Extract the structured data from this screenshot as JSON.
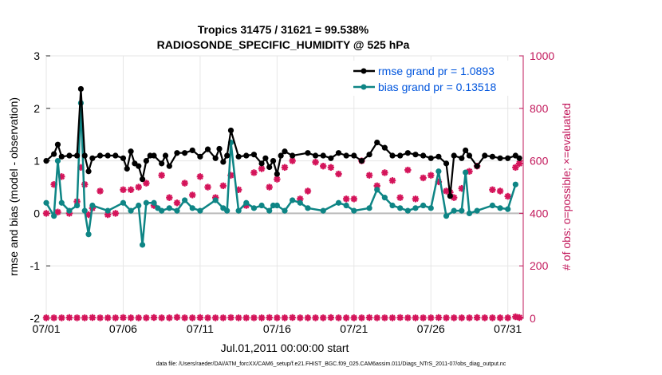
{
  "chart_data": {
    "type": "line",
    "title_line1": "Tropics 31475 / 31621 = 99.538%",
    "title_line2": "RADIOSONDE_SPECIFIC_HUMIDITY @ 525 hPa",
    "xlabel": "Jul.01,2011 00:00:00 start",
    "ylabel_left": "rmse and bias (model - observation)",
    "ylabel_right": "# of obs: o=possible; ×=evaluated",
    "footnote": "data file: /Users/raeder/DAI/ATM_forcXX/CAM6_setup/f.e21.FHIST_BGC.f09_025.CAM6assim.011/Diags_NTrS_2011-07/obs_diag_output.nc",
    "x_ticks": [
      {
        "day": 1,
        "label": "07/01"
      },
      {
        "day": 6,
        "label": "07/06"
      },
      {
        "day": 11,
        "label": "07/11"
      },
      {
        "day": 16,
        "label": "07/16"
      },
      {
        "day": 21,
        "label": "07/21"
      },
      {
        "day": 26,
        "label": "07/26"
      },
      {
        "day": 31,
        "label": "07/31"
      }
    ],
    "xlim": [
      1,
      32
    ],
    "ylim_left": [
      -2,
      3
    ],
    "ylim_right": [
      0,
      1000
    ],
    "y_ticks_left": [
      {
        "value": 3,
        "label": "3"
      },
      {
        "value": 2,
        "label": "2"
      },
      {
        "value": 1,
        "label": "1"
      },
      {
        "value": 0,
        "label": "0"
      },
      {
        "value": -1,
        "label": "-1"
      },
      {
        "value": -2,
        "label": "-2"
      }
    ],
    "y_ticks_right": [
      {
        "value": 1000,
        "label": "1000"
      },
      {
        "value": 800,
        "label": "800"
      },
      {
        "value": 600,
        "label": "600"
      },
      {
        "value": 400,
        "label": "400"
      },
      {
        "value": 200,
        "label": "200"
      },
      {
        "value": 0,
        "label": "0"
      }
    ],
    "legend": [
      {
        "name": "rmse grand pr = 1.0893",
        "color": "#000000"
      },
      {
        "name": "bias grand pr = 0.13518",
        "color": "#0e8585"
      }
    ],
    "legend_text_color": "#0055dd",
    "colors": {
      "rmse": "#000000",
      "bias": "#0e8585",
      "counts": "#d4145a",
      "right_axis": "#c2185b",
      "zero_line": "#bbbbbb"
    },
    "series": [
      {
        "name": "rmse",
        "axis": "left",
        "points": [
          [
            1.0,
            1.0
          ],
          [
            1.5,
            1.13
          ],
          [
            1.75,
            1.31
          ],
          [
            2.0,
            1.08
          ],
          [
            2.5,
            1.1
          ],
          [
            3.0,
            1.1
          ],
          [
            3.25,
            2.37
          ],
          [
            3.5,
            1.1
          ],
          [
            3.75,
            0.8
          ],
          [
            4.0,
            1.05
          ],
          [
            4.5,
            1.1
          ],
          [
            5.0,
            1.1
          ],
          [
            5.5,
            1.1
          ],
          [
            6.0,
            1.05
          ],
          [
            6.25,
            0.85
          ],
          [
            6.5,
            1.18
          ],
          [
            6.75,
            0.95
          ],
          [
            7.0,
            0.9
          ],
          [
            7.25,
            0.65
          ],
          [
            7.5,
            1.0
          ],
          [
            7.75,
            1.1
          ],
          [
            8.0,
            1.1
          ],
          [
            8.5,
            0.95
          ],
          [
            8.75,
            1.1
          ],
          [
            9.0,
            0.9
          ],
          [
            9.5,
            1.15
          ],
          [
            10.0,
            1.15
          ],
          [
            10.5,
            1.2
          ],
          [
            11.0,
            1.08
          ],
          [
            11.5,
            1.22
          ],
          [
            12.0,
            1.05
          ],
          [
            12.25,
            1.23
          ],
          [
            12.5,
            0.98
          ],
          [
            12.75,
            1.1
          ],
          [
            13.0,
            1.58
          ],
          [
            13.5,
            1.08
          ],
          [
            14.0,
            1.1
          ],
          [
            14.5,
            1.12
          ],
          [
            15.0,
            0.95
          ],
          [
            15.25,
            1.05
          ],
          [
            15.5,
            0.88
          ],
          [
            15.75,
            1.0
          ],
          [
            16.0,
            0.75
          ],
          [
            16.25,
            1.1
          ],
          [
            16.5,
            1.18
          ],
          [
            17.0,
            1.1
          ],
          [
            18.0,
            1.15
          ],
          [
            18.5,
            1.1
          ],
          [
            19.0,
            1.1
          ],
          [
            19.5,
            1.05
          ],
          [
            20.0,
            1.15
          ],
          [
            20.5,
            1.1
          ],
          [
            21.0,
            1.1
          ],
          [
            21.5,
            1.0
          ],
          [
            22.0,
            1.12
          ],
          [
            22.5,
            1.35
          ],
          [
            23.0,
            1.25
          ],
          [
            23.5,
            1.1
          ],
          [
            24.0,
            1.1
          ],
          [
            24.5,
            1.15
          ],
          [
            25.0,
            1.12
          ],
          [
            25.5,
            1.1
          ],
          [
            26.0,
            1.05
          ],
          [
            26.5,
            1.08
          ],
          [
            27.0,
            0.95
          ],
          [
            27.25,
            0.33
          ],
          [
            27.5,
            1.1
          ],
          [
            28.0,
            1.05
          ],
          [
            28.25,
            1.2
          ],
          [
            28.5,
            1.1
          ],
          [
            29.0,
            0.9
          ],
          [
            29.5,
            1.1
          ],
          [
            30.0,
            1.08
          ],
          [
            30.5,
            1.05
          ],
          [
            31.0,
            1.05
          ],
          [
            31.5,
            1.1
          ],
          [
            31.75,
            1.05
          ]
        ]
      },
      {
        "name": "bias",
        "axis": "left",
        "points": [
          [
            1.0,
            0.2
          ],
          [
            1.5,
            -0.05
          ],
          [
            1.75,
            1.0
          ],
          [
            2.0,
            0.2
          ],
          [
            2.5,
            0.05
          ],
          [
            3.0,
            0.15
          ],
          [
            3.25,
            2.1
          ],
          [
            3.5,
            0.05
          ],
          [
            3.75,
            -0.4
          ],
          [
            4.0,
            0.15
          ],
          [
            5.0,
            0.05
          ],
          [
            6.0,
            0.2
          ],
          [
            6.5,
            0.05
          ],
          [
            7.0,
            0.15
          ],
          [
            7.25,
            -0.6
          ],
          [
            7.5,
            0.2
          ],
          [
            8.0,
            0.2
          ],
          [
            8.25,
            0.1
          ],
          [
            8.5,
            0.05
          ],
          [
            9.0,
            0.1
          ],
          [
            9.5,
            0.05
          ],
          [
            10.0,
            0.25
          ],
          [
            10.5,
            0.1
          ],
          [
            11.0,
            0.05
          ],
          [
            12.0,
            0.25
          ],
          [
            12.5,
            0.1
          ],
          [
            12.75,
            0.05
          ],
          [
            13.0,
            1.35
          ],
          [
            13.5,
            0.05
          ],
          [
            14.0,
            0.2
          ],
          [
            14.5,
            0.1
          ],
          [
            15.0,
            0.15
          ],
          [
            15.5,
            0.05
          ],
          [
            15.75,
            0.15
          ],
          [
            16.0,
            0.15
          ],
          [
            16.5,
            0.05
          ],
          [
            17.0,
            0.25
          ],
          [
            17.5,
            0.2
          ],
          [
            18.0,
            0.1
          ],
          [
            19.0,
            0.05
          ],
          [
            20.0,
            0.2
          ],
          [
            20.5,
            0.15
          ],
          [
            21.0,
            0.05
          ],
          [
            22.0,
            0.1
          ],
          [
            22.5,
            0.45
          ],
          [
            23.0,
            0.3
          ],
          [
            23.5,
            0.15
          ],
          [
            24.0,
            0.1
          ],
          [
            24.5,
            0.05
          ],
          [
            25.0,
            0.1
          ],
          [
            25.5,
            0.15
          ],
          [
            26.0,
            0.1
          ],
          [
            26.5,
            0.8
          ],
          [
            27.0,
            -0.05
          ],
          [
            27.5,
            0.05
          ],
          [
            28.0,
            0.05
          ],
          [
            28.25,
            0.78
          ],
          [
            28.5,
            0.0
          ],
          [
            29.0,
            0.05
          ],
          [
            30.0,
            0.15
          ],
          [
            30.5,
            0.1
          ],
          [
            31.0,
            0.08
          ],
          [
            31.5,
            0.55
          ]
        ]
      },
      {
        "name": "evaluated_counts",
        "axis": "right",
        "points": [
          [
            1.0,
            400
          ],
          [
            1.5,
            510
          ],
          [
            1.75,
            405
          ],
          [
            2.0,
            540
          ],
          [
            2.5,
            400
          ],
          [
            3.0,
            445
          ],
          [
            3.25,
            575
          ],
          [
            3.5,
            510
          ],
          [
            3.75,
            395
          ],
          [
            4.0,
            420
          ],
          [
            4.5,
            485
          ],
          [
            5.0,
            395
          ],
          [
            5.5,
            400
          ],
          [
            6.0,
            490
          ],
          [
            6.5,
            490
          ],
          [
            7.0,
            500
          ],
          [
            7.5,
            515
          ],
          [
            8.0,
            430
          ],
          [
            8.5,
            545
          ],
          [
            9.0,
            460
          ],
          [
            9.5,
            440
          ],
          [
            10.0,
            515
          ],
          [
            10.5,
            470
          ],
          [
            11.0,
            540
          ],
          [
            11.5,
            500
          ],
          [
            12.0,
            460
          ],
          [
            12.5,
            505
          ],
          [
            13.0,
            545
          ],
          [
            13.5,
            490
          ],
          [
            14.0,
            430
          ],
          [
            14.5,
            555
          ],
          [
            15.0,
            570
          ],
          [
            15.5,
            500
          ],
          [
            16.0,
            530
          ],
          [
            16.5,
            575
          ],
          [
            17.0,
            600
          ],
          [
            17.5,
            455
          ],
          [
            18.0,
            485
          ],
          [
            18.5,
            595
          ],
          [
            19.0,
            580
          ],
          [
            19.5,
            575
          ],
          [
            20.0,
            550
          ],
          [
            20.5,
            455
          ],
          [
            21.0,
            455
          ],
          [
            21.5,
            600
          ],
          [
            22.0,
            545
          ],
          [
            22.5,
            505
          ],
          [
            23.0,
            555
          ],
          [
            23.5,
            525
          ],
          [
            24.0,
            460
          ],
          [
            24.5,
            565
          ],
          [
            25.0,
            455
          ],
          [
            25.5,
            535
          ],
          [
            26.0,
            545
          ],
          [
            26.5,
            520
          ],
          [
            27.0,
            485
          ],
          [
            27.25,
            480
          ],
          [
            27.5,
            460
          ],
          [
            28.0,
            495
          ],
          [
            28.5,
            560
          ],
          [
            29.0,
            580
          ],
          [
            30.0,
            490
          ],
          [
            30.5,
            485
          ],
          [
            31.0,
            465
          ],
          [
            31.5,
            575
          ],
          [
            31.75,
            590
          ]
        ]
      },
      {
        "name": "possible_counts",
        "axis": "right",
        "points": [
          [
            1.0,
            2
          ],
          [
            1.5,
            2
          ],
          [
            2.0,
            2
          ],
          [
            2.5,
            3
          ],
          [
            3.0,
            2
          ],
          [
            3.5,
            2
          ],
          [
            4.0,
            3
          ],
          [
            4.5,
            2
          ],
          [
            5.0,
            2
          ],
          [
            5.5,
            2
          ],
          [
            6.0,
            3
          ],
          [
            6.5,
            2
          ],
          [
            7.0,
            2
          ],
          [
            7.5,
            2
          ],
          [
            8.0,
            3
          ],
          [
            8.5,
            2
          ],
          [
            9.0,
            2
          ],
          [
            9.5,
            4
          ],
          [
            10.0,
            2
          ],
          [
            10.5,
            2
          ],
          [
            11.0,
            3
          ],
          [
            11.5,
            2
          ],
          [
            12.0,
            2
          ],
          [
            12.5,
            2
          ],
          [
            13.0,
            3
          ],
          [
            13.5,
            2
          ],
          [
            14.0,
            2
          ],
          [
            14.5,
            2
          ],
          [
            15.0,
            2
          ],
          [
            15.5,
            3
          ],
          [
            16.0,
            2
          ],
          [
            16.5,
            2
          ],
          [
            17.0,
            3
          ],
          [
            17.5,
            2
          ],
          [
            18.0,
            2
          ],
          [
            18.5,
            2
          ],
          [
            19.0,
            2
          ],
          [
            19.5,
            3
          ],
          [
            20.0,
            2
          ],
          [
            20.5,
            2
          ],
          [
            21.0,
            2
          ],
          [
            21.5,
            2
          ],
          [
            22.0,
            3
          ],
          [
            22.5,
            2
          ],
          [
            23.0,
            2
          ],
          [
            23.5,
            2
          ],
          [
            24.0,
            3
          ],
          [
            24.5,
            2
          ],
          [
            25.0,
            2
          ],
          [
            25.5,
            2
          ],
          [
            26.0,
            2
          ],
          [
            26.5,
            3
          ],
          [
            27.0,
            2
          ],
          [
            27.5,
            2
          ],
          [
            28.0,
            2
          ],
          [
            28.5,
            2
          ],
          [
            29.0,
            3
          ],
          [
            29.5,
            2
          ],
          [
            30.0,
            2
          ],
          [
            30.5,
            2
          ],
          [
            31.0,
            2
          ],
          [
            31.5,
            6
          ],
          [
            31.75,
            3
          ]
        ]
      }
    ]
  }
}
